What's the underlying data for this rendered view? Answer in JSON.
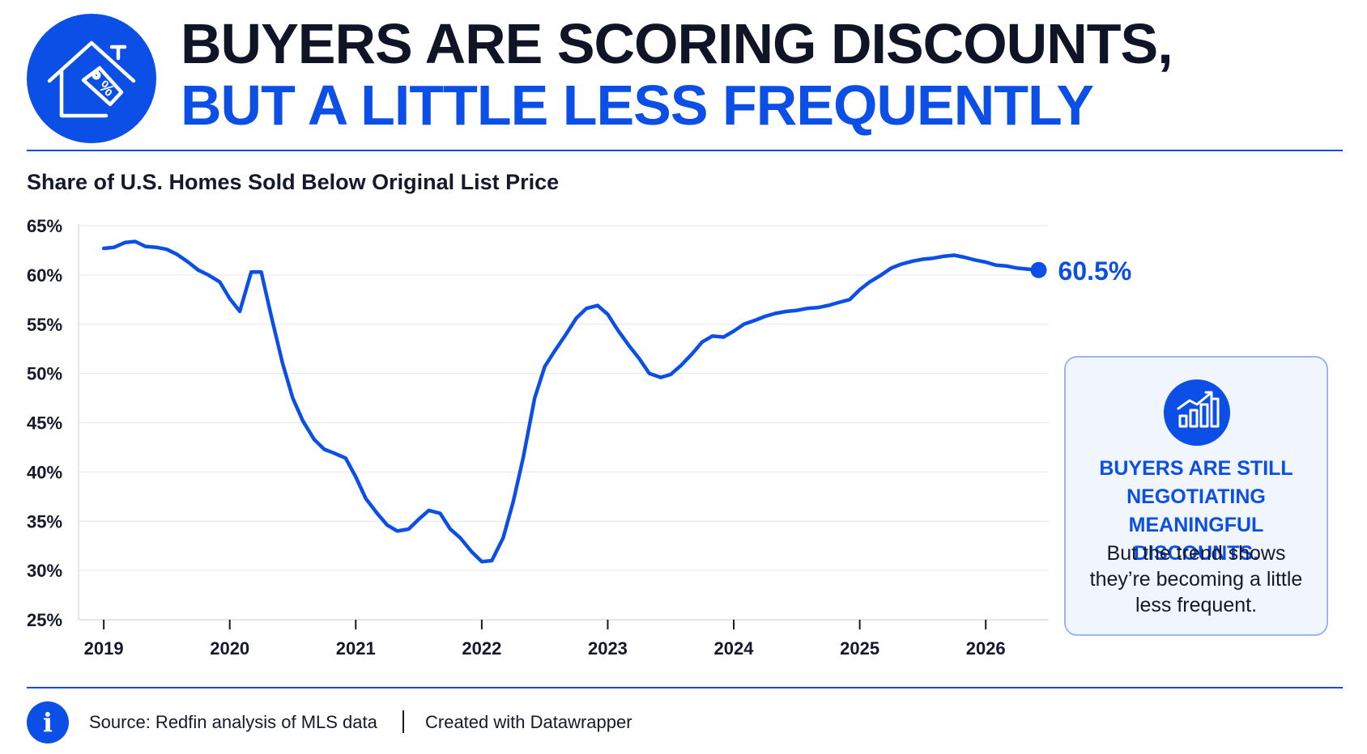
{
  "header": {
    "icon": "house-price-tag-icon",
    "title_line1": "Buyers are scoring discounts,",
    "title_line2": "but a little less frequently"
  },
  "chart_data": {
    "type": "line",
    "title": "Share of U.S. Homes Sold Below Original List Price",
    "xlabel": "",
    "ylabel": "",
    "x_ticks": [
      "2019",
      "2020",
      "2021",
      "2022",
      "2023",
      "2024",
      "2025",
      "2026"
    ],
    "y_ticks": [
      "25%",
      "30%",
      "35%",
      "40%",
      "45%",
      "50%",
      "55%",
      "60%",
      "65%"
    ],
    "ylim": [
      25,
      65
    ],
    "xlim": [
      2018.8,
      2026.5
    ],
    "grid": "horizontal",
    "line_color": "#0b4fe6",
    "series": [
      {
        "x": [
          2019.0,
          2019.08,
          2019.17,
          2019.25,
          2019.33,
          2019.42,
          2019.5,
          2019.58,
          2019.67,
          2019.75,
          2019.83,
          2019.92,
          2020.0,
          2020.08,
          2020.17,
          2020.25,
          2020.33,
          2020.42,
          2020.5,
          2020.58,
          2020.67,
          2020.75,
          2020.83,
          2020.92,
          2021.0,
          2021.08,
          2021.17,
          2021.25,
          2021.33,
          2021.42,
          2021.5,
          2021.58,
          2021.67,
          2021.75,
          2021.83,
          2021.92,
          2022.0,
          2022.08,
          2022.17,
          2022.25,
          2022.33,
          2022.42,
          2022.5,
          2022.58,
          2022.67,
          2022.75,
          2022.83,
          2022.92,
          2023.0,
          2023.08,
          2023.17,
          2023.25,
          2023.33,
          2023.42,
          2023.5,
          2023.58,
          2023.67,
          2023.75,
          2023.83,
          2023.92,
          2024.0,
          2024.08,
          2024.17,
          2024.25,
          2024.33,
          2024.42,
          2024.5,
          2024.58,
          2024.67,
          2024.75,
          2024.83,
          2024.92,
          2025.0,
          2025.08,
          2025.17,
          2025.25,
          2025.33,
          2025.42,
          2025.5,
          2025.58,
          2025.67,
          2025.75,
          2025.83,
          2025.92,
          2026.0,
          2026.08,
          2026.17,
          2026.25,
          2026.33,
          2026.42
        ],
        "values": [
          62.7,
          62.8,
          63.3,
          63.4,
          62.9,
          62.8,
          62.6,
          62.1,
          61.3,
          60.5,
          60.0,
          59.3,
          57.6,
          56.3,
          60.3,
          60.3,
          55.8,
          51.0,
          47.5,
          45.2,
          43.3,
          42.3,
          41.9,
          41.4,
          39.5,
          37.3,
          35.8,
          34.6,
          34.0,
          34.2,
          35.2,
          36.1,
          35.8,
          34.2,
          33.3,
          31.9,
          30.9,
          31.0,
          33.3,
          37.0,
          41.5,
          47.5,
          50.7,
          52.3,
          54.0,
          55.6,
          56.6,
          56.9,
          56.0,
          54.4,
          52.8,
          51.5,
          50.0,
          49.6,
          49.9,
          50.8,
          52.0,
          53.2,
          53.8,
          53.7,
          54.3,
          55.0,
          55.4,
          55.8,
          56.1,
          56.3,
          56.4,
          56.6,
          56.7,
          56.9,
          57.2,
          57.5,
          58.5,
          59.3,
          60.0,
          60.7,
          61.1,
          61.4,
          61.6,
          61.7,
          61.9,
          62.0,
          61.8,
          61.5,
          61.3,
          61.0,
          60.9,
          60.7,
          60.6,
          60.5
        ]
      }
    ],
    "end_label": "60.5%"
  },
  "callout": {
    "icon": "bar-chart-trend-up-icon",
    "headline": "Buyers are still negotiating meaningful discounts.",
    "body": "But the trend shows they’re becoming a little less frequent."
  },
  "footer": {
    "icon": "info-icon",
    "info_glyph": "i",
    "source": "Source: Redfin analysis of MLS data",
    "credit": "Created with Datawrapper"
  }
}
